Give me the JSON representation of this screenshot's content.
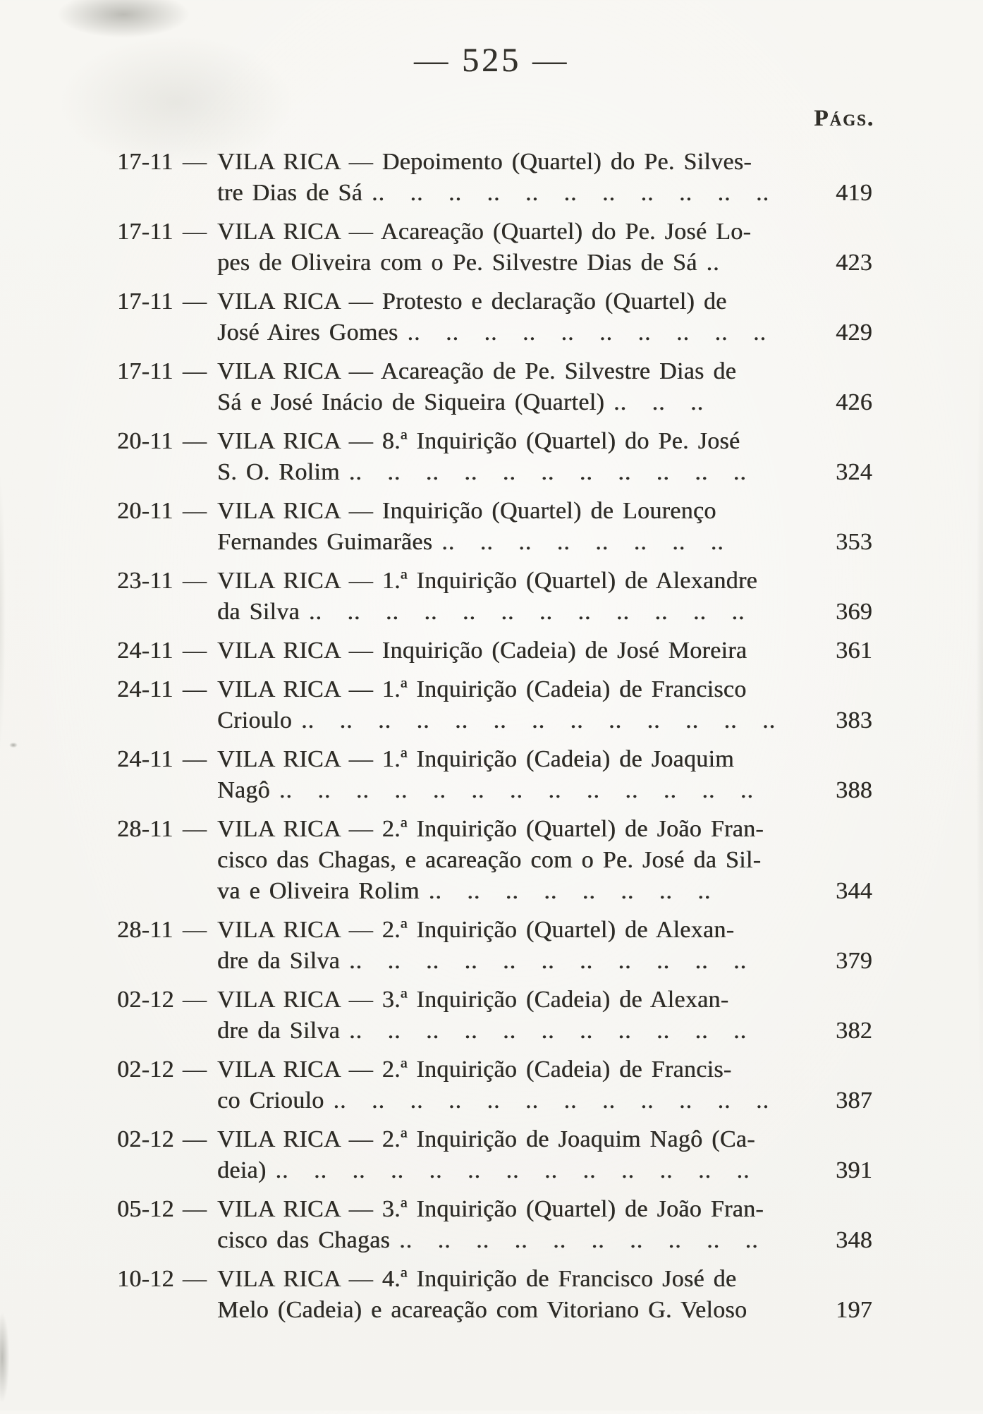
{
  "page": {
    "number_display": "— 525 —",
    "pags_label": "Págs."
  },
  "dash": "—",
  "entries": [
    {
      "date": "17-11",
      "lines": [
        {
          "text": "VILA RICA — Depoimento (Quartel) do Pe. Silves-",
          "dots": ""
        },
        {
          "text": "tre Dias de Sá",
          "dots": ".. .. .. .. .. .. .. .. .. .. .."
        }
      ],
      "page": "419"
    },
    {
      "date": "17-11",
      "lines": [
        {
          "text": "VILA RICA — Acareação (Quartel) do Pe. José Lo-",
          "dots": ""
        },
        {
          "text": "pes de Oliveira com o Pe. Silvestre Dias de Sá",
          "dots": ".."
        }
      ],
      "page": "423"
    },
    {
      "date": "17-11",
      "lines": [
        {
          "text": "VILA RICA — Protesto e declaração (Quartel) de",
          "dots": ""
        },
        {
          "text": "José Aires Gomes",
          "dots": ".. .. .. .. .. .. .. .. .. .."
        }
      ],
      "page": "429"
    },
    {
      "date": "17-11",
      "lines": [
        {
          "text": "VILA RICA — Acareação de Pe. Silvestre Dias de",
          "dots": ""
        },
        {
          "text": "Sá e José Inácio de Siqueira (Quartel)",
          "dots": ".. .. .."
        }
      ],
      "page": "426"
    },
    {
      "date": "20-11",
      "lines": [
        {
          "text": "VILA RICA — 8.ª Inquirição (Quartel) do Pe. José",
          "dots": ""
        },
        {
          "text": "S. O. Rolim",
          "dots": ".. .. .. .. .. .. .. .. .. .. .."
        }
      ],
      "page": "324"
    },
    {
      "date": "20-11",
      "lines": [
        {
          "text": "VILA RICA — Inquirição (Quartel) de Lourenço",
          "dots": ""
        },
        {
          "text": "Fernandes Guimarães",
          "dots": ".. .. .. .. .. .. .. .."
        }
      ],
      "page": "353"
    },
    {
      "date": "23-11",
      "lines": [
        {
          "text": "VILA RICA — 1.ª Inquirição (Quartel) de Alexandre",
          "dots": ""
        },
        {
          "text": "da Silva",
          "dots": ".. .. .. .. .. .. .. .. .. .. .. .."
        }
      ],
      "page": "369"
    },
    {
      "date": "24-11",
      "lines": [
        {
          "text": "VILA RICA — Inquirição (Cadeia) de José Moreira",
          "dots": ""
        }
      ],
      "page": "361"
    },
    {
      "date": "24-11",
      "lines": [
        {
          "text": "VILA RICA — 1.ª Inquirição (Cadeia) de Francisco",
          "dots": ""
        },
        {
          "text": "Crioulo",
          "dots": ".. .. .. .. .. .. .. .. .. .. .. .. .."
        }
      ],
      "page": "383"
    },
    {
      "date": "24-11",
      "lines": [
        {
          "text": "VILA RICA — 1.ª Inquirição (Cadeia) de Joaquim",
          "dots": ""
        },
        {
          "text": "Nagô",
          "dots": ".. .. .. .. .. .. .. .. .. .. .. .. .."
        }
      ],
      "page": "388"
    },
    {
      "date": "28-11",
      "lines": [
        {
          "text": "VILA RICA — 2.ª Inquirição (Quartel) de João Fran-",
          "dots": ""
        },
        {
          "text": "cisco das Chagas, e acareação com o Pe. José da Sil-",
          "dots": ""
        },
        {
          "text": "va e Oliveira Rolim",
          "dots": ".. .. .. .. .. .. .. .."
        }
      ],
      "page": "344"
    },
    {
      "date": "28-11",
      "lines": [
        {
          "text": "VILA RICA — 2.ª Inquirição (Quartel) de Alexan-",
          "dots": ""
        },
        {
          "text": "dre da Silva",
          "dots": ".. .. .. .. .. .. .. .. .. .. .."
        }
      ],
      "page": "379"
    },
    {
      "date": "02-12",
      "lines": [
        {
          "text": "VILA RICA — 3.ª Inquirição (Cadeia) de Alexan-",
          "dots": ""
        },
        {
          "text": "dre da Silva",
          "dots": ".. .. .. .. .. .. .. .. .. .. .."
        }
      ],
      "page": "382"
    },
    {
      "date": "02-12",
      "lines": [
        {
          "text": "VILA RICA — 2.ª Inquirição (Cadeia) de Francis-",
          "dots": ""
        },
        {
          "text": "co Crioulo",
          "dots": ".. .. .. .. .. .. .. .. .. .. .. .."
        }
      ],
      "page": "387"
    },
    {
      "date": "02-12",
      "lines": [
        {
          "text": "VILA RICA — 2.ª Inquirição de Joaquim Nagô (Ca-",
          "dots": ""
        },
        {
          "text": "deia)",
          "dots": ".. .. .. .. .. .. .. .. .. .. .. .. .."
        }
      ],
      "page": "391"
    },
    {
      "date": "05-12",
      "lines": [
        {
          "text": "VILA RICA — 3.ª Inquirição (Quartel) de João Fran-",
          "dots": ""
        },
        {
          "text": "cisco das Chagas",
          "dots": ".. .. .. .. .. .. .. .. .. .."
        }
      ],
      "page": "348"
    },
    {
      "date": "10-12",
      "lines": [
        {
          "text": "VILA RICA — 4.ª Inquirição de Francisco José de",
          "dots": ""
        },
        {
          "text": "Melo (Cadeia) e acareação com Vitoriano G. Veloso",
          "dots": ""
        }
      ],
      "page": "197"
    }
  ]
}
